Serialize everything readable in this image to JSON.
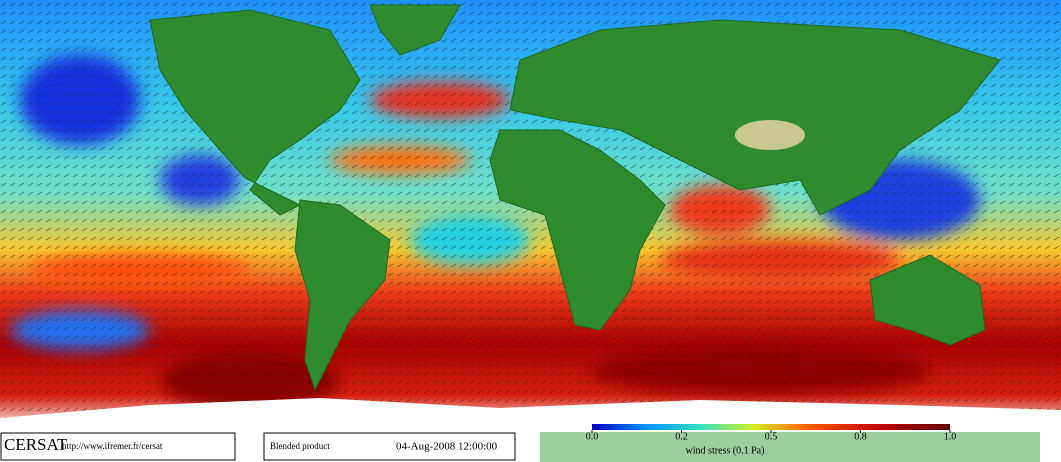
{
  "footer": {
    "logo": "CERSAT",
    "url": "http://www.ifremer.fr/cersat",
    "product": "Blended product",
    "date": "04-Aug-2008 12:00:00"
  },
  "colorbar": {
    "range": [
      0,
      1
    ],
    "ticks": [
      {
        "value": 0,
        "label": "0.0"
      },
      0.2,
      0.5,
      0.8,
      {
        "value": 1,
        "label": "1.0"
      }
    ],
    "label": "wind stress (0.1 Pa)"
  }
}
